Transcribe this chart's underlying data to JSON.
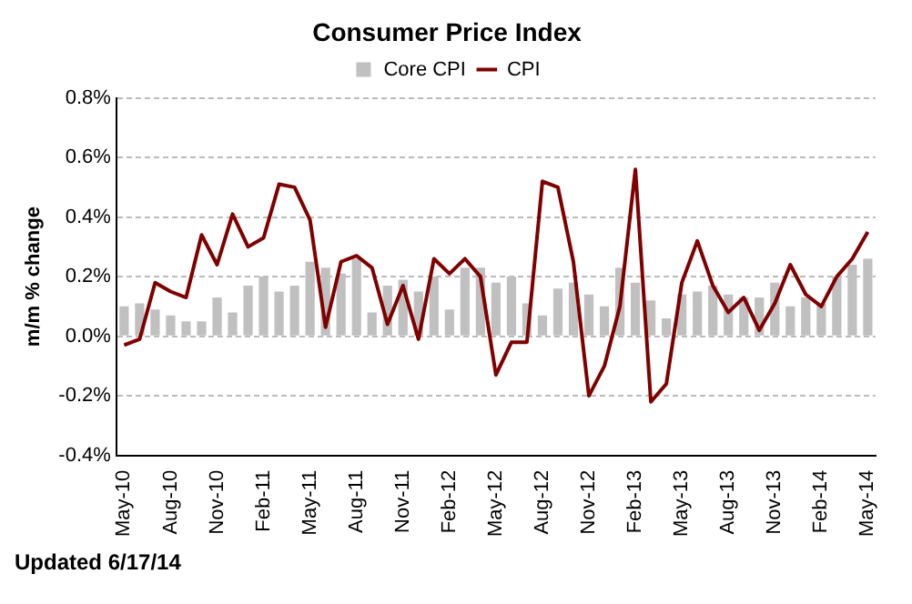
{
  "chart_data": {
    "type": "bar",
    "title": "Consumer Price Index",
    "ylabel": "m/m % change",
    "categories": [
      "May-10",
      null,
      null,
      "Aug-10",
      null,
      null,
      "Nov-10",
      null,
      null,
      "Feb-11",
      null,
      null,
      "May-11",
      null,
      null,
      "Aug-11",
      null,
      null,
      "Nov-11",
      null,
      null,
      "Feb-12",
      null,
      null,
      "May-12",
      null,
      null,
      "Aug-12",
      null,
      null,
      "Nov-12",
      null,
      null,
      "Feb-13",
      null,
      null,
      "May-13",
      null,
      null,
      "Aug-13",
      null,
      null,
      "Nov-13",
      null,
      null,
      "Feb-14",
      null,
      null,
      "May-14"
    ],
    "series": [
      {
        "name": "Core CPI",
        "color": "#c0c0c0",
        "values": [
          0.1,
          0.11,
          0.09,
          0.07,
          0.05,
          0.05,
          0.13,
          0.08,
          0.17,
          0.2,
          0.15,
          0.17,
          0.25,
          0.23,
          0.21,
          0.26,
          0.08,
          0.17,
          0.19,
          0.15,
          0.2,
          0.09,
          0.23,
          0.23,
          0.18,
          0.2,
          0.11,
          0.07,
          0.16,
          0.18,
          0.14,
          0.1,
          0.23,
          0.18,
          0.12,
          0.06,
          0.14,
          0.15,
          0.17,
          0.14,
          0.13,
          0.13,
          0.18,
          0.1,
          0.13,
          0.11,
          0.2,
          0.24,
          0.26
        ]
      },
      {
        "name": "CPI",
        "type": "line",
        "color": "#800000",
        "values": [
          -0.03,
          -0.01,
          0.18,
          0.15,
          0.13,
          0.34,
          0.24,
          0.41,
          0.3,
          0.33,
          0.51,
          0.5,
          0.39,
          0.03,
          0.25,
          0.27,
          0.23,
          0.04,
          0.17,
          -0.01,
          0.26,
          0.21,
          0.26,
          0.2,
          -0.13,
          -0.02,
          -0.02,
          0.52,
          0.5,
          0.25,
          -0.2,
          -0.1,
          0.1,
          0.56,
          -0.22,
          -0.16,
          0.18,
          0.32,
          0.17,
          0.08,
          0.13,
          0.02,
          0.11,
          0.24,
          0.14,
          0.1,
          0.2,
          0.26,
          0.35
        ]
      }
    ],
    "ylim": [
      -0.4,
      0.8
    ],
    "yticks": [
      {
        "value": -0.4,
        "label": "-0.4%"
      },
      {
        "value": -0.2,
        "label": "-0.2%"
      },
      {
        "value": 0,
        "label": "0.0%"
      },
      {
        "value": 0.2,
        "label": "0.2%"
      },
      {
        "value": 0.4,
        "label": "0.4%"
      },
      {
        "value": 0.6,
        "label": "0.6%"
      },
      {
        "value": 0.8,
        "label": "0.8%"
      }
    ],
    "grid": "y",
    "legend": "top",
    "annotations": [
      "Updated 6/17/14"
    ]
  }
}
